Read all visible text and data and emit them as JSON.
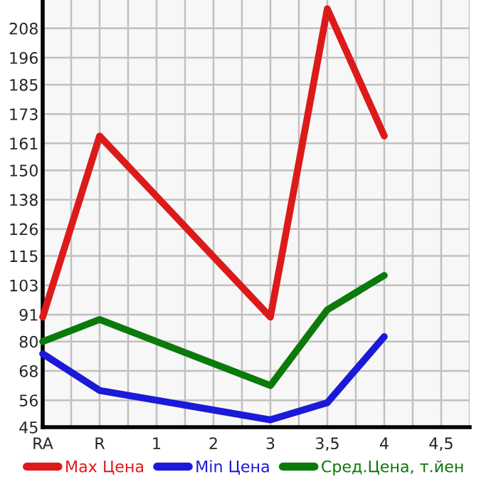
{
  "chart_data": {
    "type": "line",
    "categories": [
      "RA",
      "R",
      "1",
      "2",
      "3",
      "3,5",
      "4",
      "4,5"
    ],
    "series": [
      {
        "name": "Max Цена",
        "color": "#dd1a1a",
        "values": [
          90,
          164,
          null,
          null,
          90,
          216,
          164,
          null
        ]
      },
      {
        "name": "Min Цена",
        "color": "#1a1ad8",
        "values": [
          75,
          60,
          null,
          null,
          48,
          55,
          82,
          null
        ]
      },
      {
        "name": "Сред.Цена, т.йен",
        "color": "#0b7a0b",
        "values": [
          80,
          89,
          null,
          null,
          62,
          93,
          107,
          null
        ]
      }
    ],
    "ylim": [
      45,
      219.6
    ],
    "yticks": [
      45,
      56,
      68,
      80,
      91,
      103,
      115,
      126,
      138,
      150,
      161,
      173,
      185,
      196,
      208
    ],
    "grid": true,
    "legend": "bottom",
    "marker": "none",
    "line_style": "solid"
  }
}
